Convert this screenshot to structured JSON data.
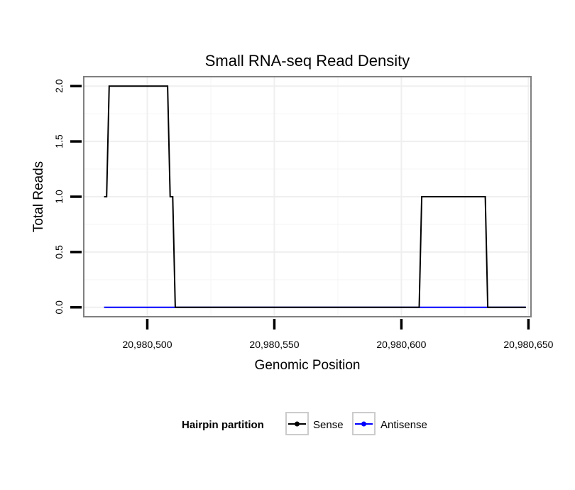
{
  "chart_data": {
    "type": "line",
    "title": "Small RNA-seq Read Density",
    "xlabel": "Genomic Position",
    "ylabel": "Total Reads",
    "xlim": [
      20980475,
      20980651
    ],
    "ylim": [
      -0.085,
      2.085
    ],
    "x_ticks": [
      20980500,
      20980550,
      20980600,
      20980650
    ],
    "x_tick_labels": [
      "20,980,500",
      "20,980,550",
      "20,980,600",
      "20,980,650"
    ],
    "y_ticks": [
      0,
      0.5,
      1,
      1.5,
      2
    ],
    "y_tick_labels": [
      "0.0",
      "0.5",
      "1.0",
      "1.5",
      "2.0"
    ],
    "grid": true,
    "legend": {
      "title": "Hairpin partition",
      "position": "bottom"
    },
    "series": [
      {
        "name": "Sense",
        "color": "#000000",
        "x": [
          20980483,
          20980484,
          20980485,
          20980508,
          20980509,
          20980510,
          20980511,
          20980607,
          20980608,
          20980633,
          20980634,
          20980649
        ],
        "y": [
          1,
          1,
          2,
          2,
          1,
          1,
          0,
          0,
          1,
          1,
          0,
          0
        ]
      },
      {
        "name": "Antisense",
        "color": "#0000ff",
        "x": [
          20980483,
          20980649
        ],
        "y": [
          0,
          0
        ]
      }
    ]
  }
}
